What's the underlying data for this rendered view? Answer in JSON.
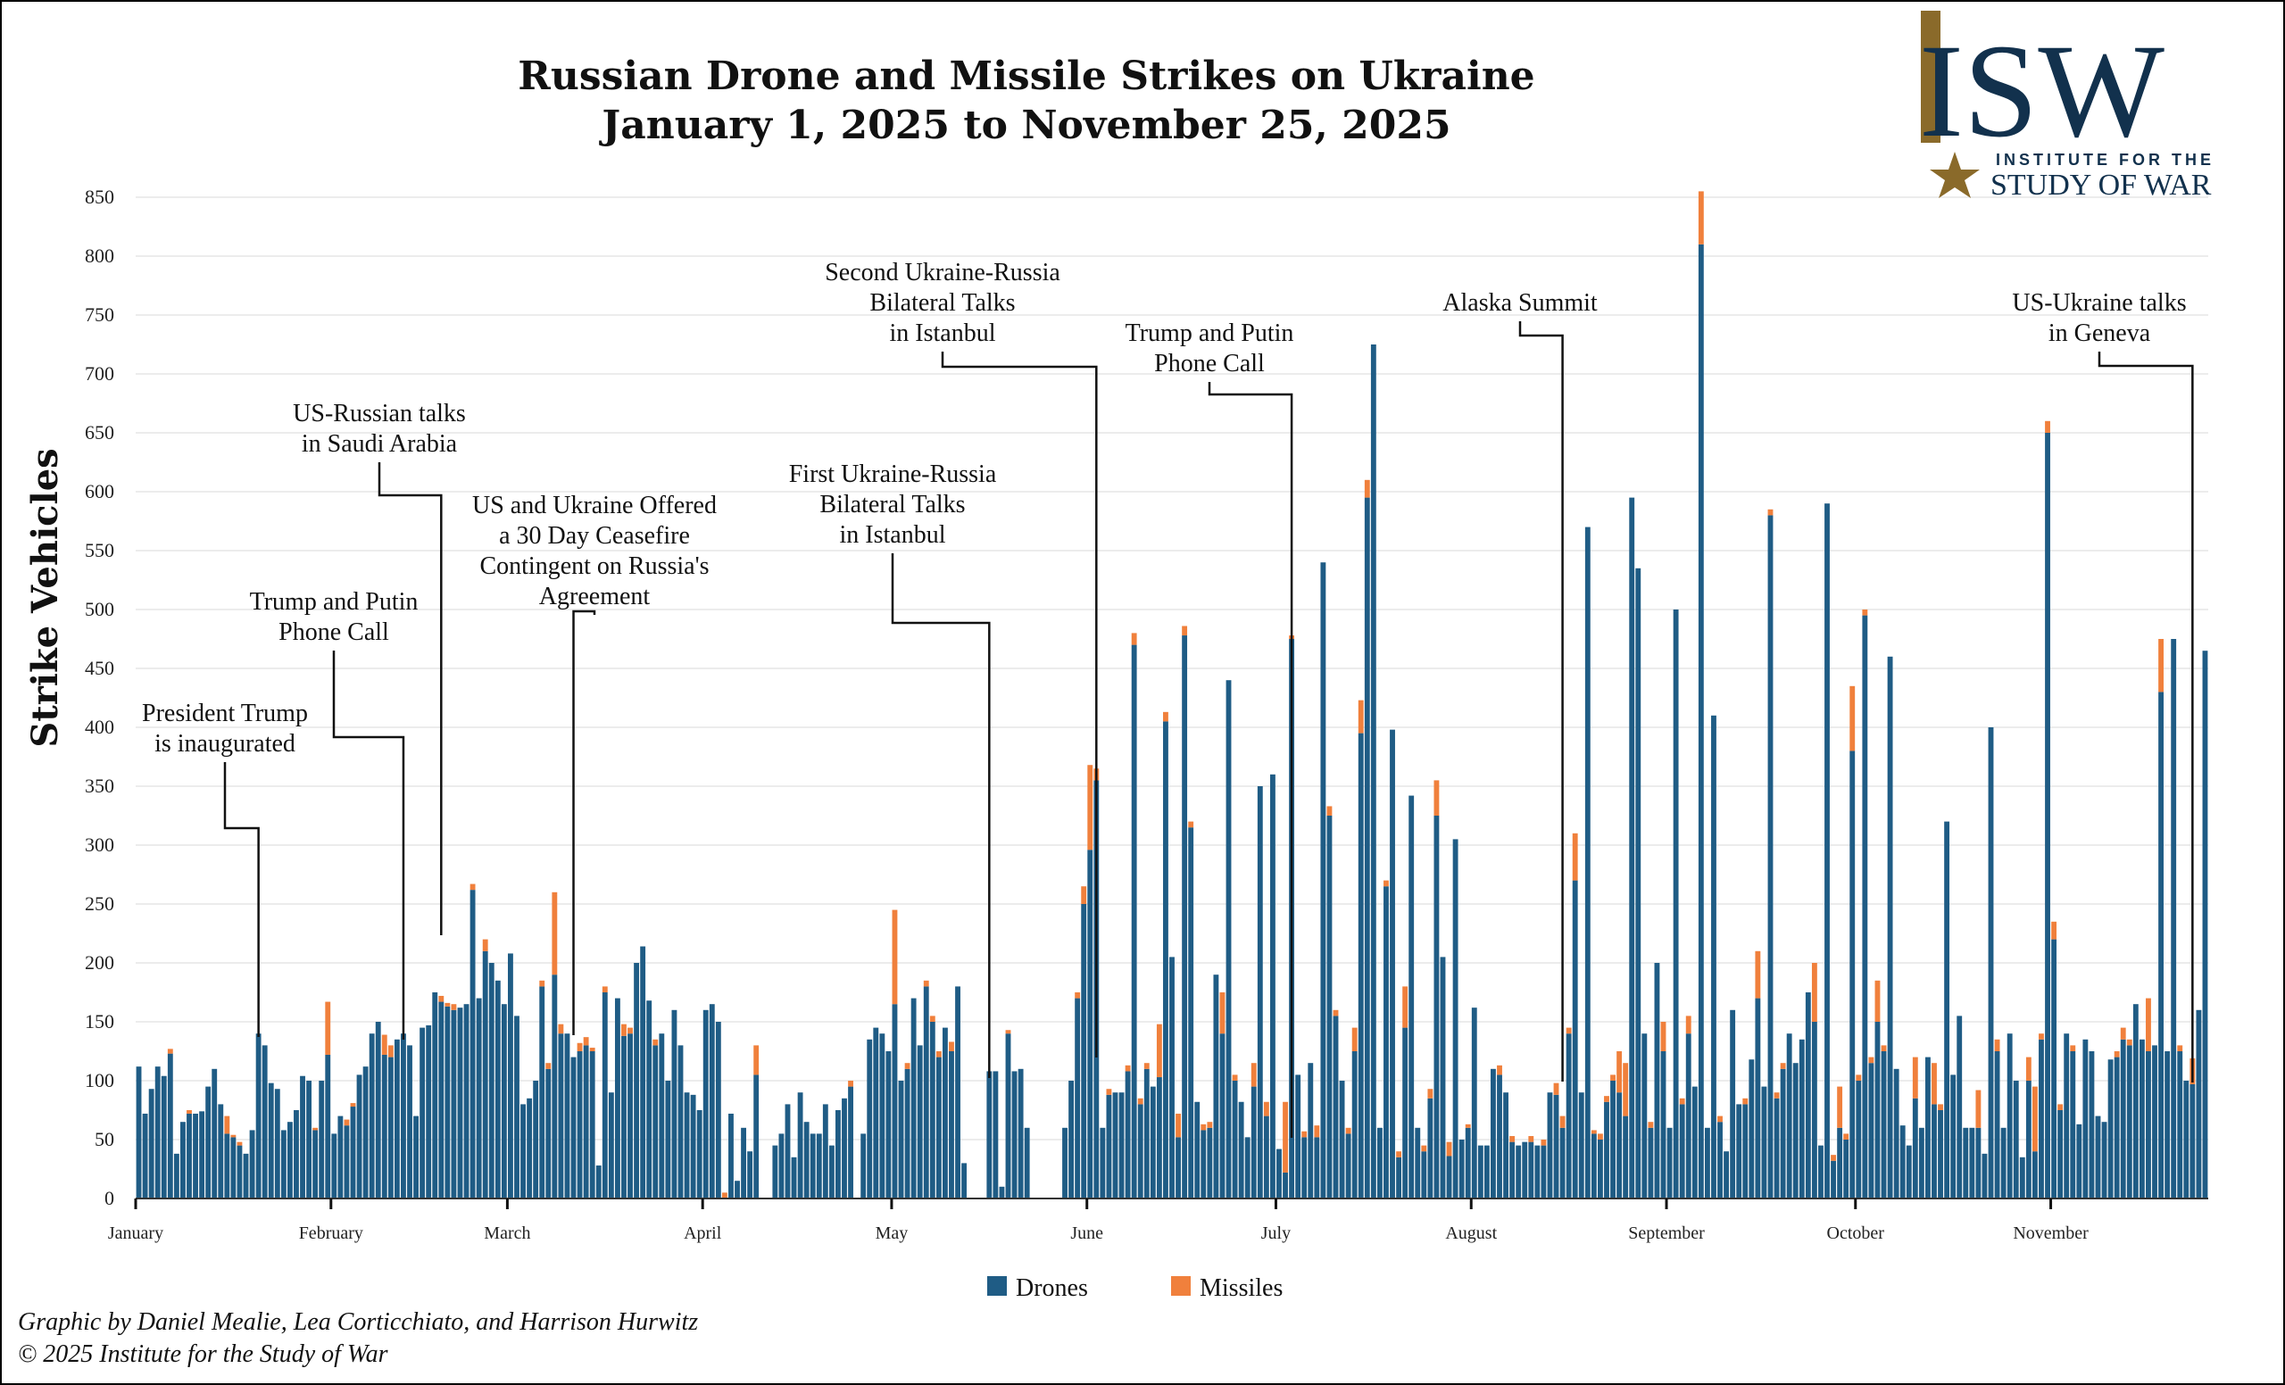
{
  "chart_data": {
    "type": "bar",
    "stacked": true,
    "title": "Russian Drone and Missile Strikes on Ukraine",
    "subtitle": "January 1, 2025 to November 25, 2025",
    "ylabel": "Strike Vehicles",
    "xlabel": "",
    "ylim": [
      0,
      850
    ],
    "yticks": [
      0,
      50,
      100,
      150,
      200,
      250,
      300,
      350,
      400,
      450,
      500,
      550,
      600,
      650,
      700,
      750,
      800,
      850
    ],
    "grid": true,
    "legend_position": "bottom-center",
    "x_start": "2025-01-01",
    "x_end": "2025-11-25",
    "month_labels": [
      "January",
      "February",
      "March",
      "April",
      "May",
      "June",
      "July",
      "August",
      "September",
      "October",
      "November"
    ],
    "series": [
      {
        "name": "Drones",
        "color": "#1f5c85",
        "values": [
          112,
          72,
          93,
          112,
          104,
          123,
          38,
          65,
          72,
          72,
          74,
          95,
          110,
          80,
          55,
          52,
          45,
          38,
          58,
          140,
          130,
          98,
          93,
          58,
          65,
          75,
          104,
          100,
          58,
          100,
          122,
          55,
          70,
          62,
          78,
          105,
          112,
          140,
          150,
          122,
          120,
          135,
          140,
          130,
          70,
          145,
          147,
          175,
          167,
          163,
          160,
          162,
          165,
          262,
          170,
          210,
          200,
          185,
          165,
          208,
          155,
          80,
          85,
          100,
          180,
          110,
          190,
          140,
          140,
          120,
          125,
          130,
          125,
          28,
          175,
          90,
          170,
          138,
          140,
          200,
          214,
          168,
          130,
          140,
          100,
          160,
          130,
          90,
          88,
          75,
          160,
          165,
          150,
          0,
          72,
          15,
          60,
          40,
          105,
          0,
          0,
          45,
          55,
          80,
          35,
          90,
          65,
          55,
          55,
          80,
          45,
          75,
          85,
          95,
          0,
          55,
          135,
          145,
          140,
          125,
          165,
          100,
          110,
          170,
          130,
          180,
          150,
          120,
          145,
          125,
          180,
          30,
          0,
          0,
          0,
          108,
          108,
          10,
          140,
          108,
          110,
          60,
          0,
          0,
          0,
          0,
          0,
          60,
          100,
          170,
          250,
          296,
          355,
          60,
          88,
          90,
          90,
          108,
          470,
          80,
          110,
          95,
          103,
          405,
          205,
          52,
          478,
          315,
          82,
          58,
          60,
          190,
          140,
          440,
          100,
          82,
          52,
          95,
          350,
          70,
          360,
          42,
          22,
          475,
          105,
          52,
          115,
          52,
          540,
          325,
          155,
          100,
          55,
          125,
          395,
          595,
          725,
          60,
          265,
          398,
          35,
          145,
          342,
          60,
          40,
          85,
          325,
          205,
          36,
          305,
          50,
          60,
          162,
          45,
          45,
          110,
          105,
          90,
          48,
          45,
          48,
          48,
          45,
          45,
          90,
          88,
          60,
          140,
          270,
          90,
          570,
          55,
          50,
          82,
          100,
          90,
          70,
          595,
          535,
          140,
          60,
          200,
          125,
          60,
          500,
          80,
          140,
          95,
          810,
          60,
          410,
          65,
          40,
          160,
          80,
          80,
          118,
          170,
          95,
          580,
          85,
          110,
          140,
          115,
          135,
          175,
          150,
          45,
          590,
          32,
          60,
          50,
          380,
          100,
          495,
          115,
          150,
          125,
          460,
          110,
          62,
          45,
          85,
          60,
          120,
          80,
          75,
          320,
          105,
          155,
          60,
          60,
          60,
          38,
          400,
          125,
          60,
          140,
          100,
          35,
          100,
          40,
          135,
          650,
          220,
          75,
          140,
          125,
          63,
          135,
          125,
          70,
          65,
          118,
          120,
          135,
          130,
          165,
          135,
          125,
          130,
          430,
          125,
          475,
          125,
          100,
          97,
          160,
          465
        ]
      },
      {
        "name": "Missiles",
        "color": "#f0803c",
        "values": [
          0,
          0,
          0,
          0,
          0,
          4,
          0,
          0,
          3,
          0,
          0,
          0,
          0,
          0,
          15,
          2,
          3,
          0,
          0,
          0,
          0,
          0,
          0,
          0,
          0,
          0,
          0,
          0,
          2,
          0,
          45,
          0,
          0,
          5,
          3,
          0,
          0,
          0,
          0,
          17,
          10,
          0,
          0,
          0,
          0,
          0,
          0,
          0,
          5,
          3,
          5,
          0,
          0,
          5,
          0,
          10,
          0,
          0,
          0,
          0,
          0,
          0,
          0,
          0,
          5,
          5,
          70,
          8,
          0,
          0,
          7,
          7,
          3,
          0,
          5,
          0,
          0,
          10,
          5,
          0,
          0,
          0,
          5,
          0,
          0,
          0,
          0,
          0,
          0,
          0,
          0,
          0,
          0,
          5,
          0,
          0,
          0,
          0,
          25,
          0,
          0,
          0,
          0,
          0,
          0,
          0,
          0,
          0,
          0,
          0,
          0,
          0,
          0,
          5,
          0,
          0,
          0,
          0,
          0,
          0,
          80,
          0,
          5,
          0,
          0,
          5,
          5,
          5,
          0,
          8,
          0,
          0,
          0,
          0,
          0,
          0,
          0,
          0,
          3,
          0,
          0,
          0,
          0,
          0,
          0,
          0,
          0,
          0,
          0,
          5,
          15,
          72,
          10,
          0,
          5,
          0,
          0,
          5,
          10,
          5,
          5,
          0,
          45,
          8,
          0,
          20,
          8,
          5,
          0,
          5,
          5,
          0,
          35,
          0,
          5,
          0,
          0,
          20,
          0,
          12,
          0,
          0,
          60,
          3,
          0,
          5,
          0,
          10,
          0,
          8,
          5,
          0,
          5,
          20,
          28,
          15,
          0,
          0,
          5,
          0,
          5,
          35,
          0,
          0,
          5,
          8,
          30,
          0,
          12,
          0,
          0,
          3,
          0,
          0,
          0,
          0,
          8,
          0,
          5,
          0,
          0,
          5,
          0,
          5,
          0,
          10,
          10,
          5,
          40,
          0,
          0,
          3,
          5,
          5,
          5,
          35,
          45,
          0,
          0,
          0,
          5,
          0,
          25,
          0,
          0,
          5,
          15,
          0,
          45,
          0,
          0,
          5,
          0,
          0,
          0,
          5,
          0,
          40,
          0,
          5,
          5,
          5,
          0,
          0,
          0,
          0,
          50,
          0,
          0,
          5,
          35,
          5,
          55,
          5,
          5,
          5,
          35,
          5,
          0,
          0,
          0,
          0,
          35,
          0,
          0,
          35,
          5,
          0,
          0,
          0,
          0,
          0,
          32,
          0,
          0,
          10,
          0,
          0,
          0,
          0,
          20,
          55,
          5,
          10,
          15,
          5,
          0,
          5,
          0,
          0,
          0,
          0,
          0,
          0,
          5,
          10,
          5,
          0,
          0,
          45,
          0,
          45,
          0,
          0,
          5,
          0,
          22
        ]
      }
    ],
    "annotations": [
      {
        "lines": [
          "President Trump",
          "is inaugurated"
        ],
        "date": "2025-01-20"
      },
      {
        "lines": [
          "Trump and Putin",
          "Phone Call"
        ],
        "date": "2025-02-12"
      },
      {
        "lines": [
          "US-Russian talks",
          "in Saudi Arabia"
        ],
        "date": "2025-02-18"
      },
      {
        "lines": [
          "US and Ukraine Offered",
          "a 30 Day Ceasefire",
          "Contingent on Russia's",
          "Agreement"
        ],
        "date": "2025-03-11"
      },
      {
        "lines": [
          "First Ukraine-Russia",
          "Bilateral Talks",
          "in Istanbul"
        ],
        "date": "2025-05-16"
      },
      {
        "lines": [
          "Second Ukraine-Russia",
          "Bilateral Talks",
          "in Istanbul"
        ],
        "date": "2025-06-02"
      },
      {
        "lines": [
          "Trump and Putin",
          "Phone Call"
        ],
        "date": "2025-07-03"
      },
      {
        "lines": [
          "Alaska Summit"
        ],
        "date": "2025-08-15"
      },
      {
        "lines": [
          "US-Ukraine talks",
          "in Geneva"
        ],
        "date": "2025-11-23"
      }
    ]
  },
  "credits": {
    "line1": "Graphic by Daniel Mealie, Lea Corticchiato, and Harrison Hurwitz",
    "line2": "© 2025 Institute for the Study of War"
  },
  "logo": {
    "mark": "ISW",
    "line1": "INSTITUTE FOR THE",
    "line2": "STUDY OF WAR",
    "color": "#12314d",
    "accent": "#8a6a2a"
  }
}
